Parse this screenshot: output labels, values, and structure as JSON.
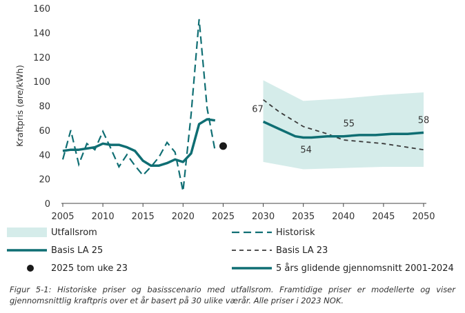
{
  "chart_data": {
    "type": "line",
    "ylabel": "Kraftpris (øre/kWh)",
    "xlabel": "",
    "xlim": [
      2005,
      2050
    ],
    "ylim": [
      0,
      160
    ],
    "x_ticks": [
      "2005",
      "2010",
      "2015",
      "2020",
      "2025",
      "2030",
      "2035",
      "2040",
      "2045",
      "2050"
    ],
    "y_ticks": [
      "0",
      "20",
      "40",
      "60",
      "80",
      "100",
      "120",
      "140",
      "160"
    ],
    "grid": false,
    "legend_position": "bottom",
    "colors": {
      "teal": "#0f6e73",
      "band": "#d5ecea",
      "dark": "#3a3a3a",
      "black": "#1a1a1a"
    },
    "series": [
      {
        "name": "Utfallsrom",
        "kind": "band",
        "x": [
          2030,
          2035,
          2040,
          2045,
          2050
        ],
        "lower": [
          34,
          28,
          29,
          30,
          30
        ],
        "upper": [
          101,
          84,
          86,
          89,
          91
        ]
      },
      {
        "name": "Historisk",
        "kind": "dashed",
        "x": [
          2005,
          2006,
          2007,
          2008,
          2009,
          2010,
          2011,
          2012,
          2013,
          2014,
          2015,
          2016,
          2017,
          2018,
          2019,
          2020,
          2021,
          2022,
          2023,
          2024
        ],
        "y": [
          36,
          60,
          32,
          49,
          44,
          59,
          45,
          30,
          40,
          31,
          23,
          30,
          38,
          50,
          42,
          10,
          73,
          151,
          78,
          43
        ]
      },
      {
        "name": "Basis LA 25",
        "kind": "solid",
        "x": [
          2030,
          2032,
          2034,
          2035,
          2036,
          2038,
          2040,
          2042,
          2044,
          2046,
          2048,
          2050
        ],
        "y": [
          67,
          61,
          55,
          54,
          54,
          55,
          55,
          56,
          56,
          57,
          57,
          58
        ]
      },
      {
        "name": "Basis LA 23",
        "kind": "smalldash",
        "x": [
          2030,
          2032,
          2035,
          2038,
          2040,
          2045,
          2050
        ],
        "y": [
          85,
          75,
          63,
          57,
          52,
          49,
          44
        ]
      },
      {
        "name": "2025 tom uke 23",
        "kind": "point",
        "x": [
          2025
        ],
        "y": [
          47
        ]
      },
      {
        "name": "5 års glidende gjennomsnitt 2001-2024",
        "kind": "solid",
        "x": [
          2005,
          2006,
          2007,
          2008,
          2009,
          2010,
          2011,
          2012,
          2013,
          2014,
          2015,
          2016,
          2017,
          2018,
          2019,
          2020,
          2021,
          2022,
          2023,
          2024
        ],
        "y": [
          43,
          44,
          44,
          45,
          46,
          49,
          48,
          48,
          46,
          43,
          35,
          31,
          31,
          33,
          36,
          34,
          41,
          65,
          69,
          68
        ]
      }
    ],
    "annotations": [
      {
        "text": "67",
        "x": 2030,
        "y": 67
      },
      {
        "text": "54",
        "x": 2035,
        "y": 54
      },
      {
        "text": "55",
        "x": 2040,
        "y": 55
      },
      {
        "text": "58",
        "x": 2050,
        "y": 58
      }
    ]
  },
  "legend": {
    "utfallsrom": "Utfallsrom",
    "historisk": "Historisk",
    "basis_la25": "Basis LA 25",
    "basis_la23": "Basis LA 23",
    "point_2025": "2025 tom uke 23",
    "moving_avg": "5 års glidende gjennomsnitt 2001-2024"
  },
  "caption": "Figur 5-1: Historiske priser og basisscenario med utfallsrom. Framtidige priser er modellerte og viser gjennomsnittlig kraftpris over et år basert på 30 ulike værår. Alle priser i 2023 NOK."
}
